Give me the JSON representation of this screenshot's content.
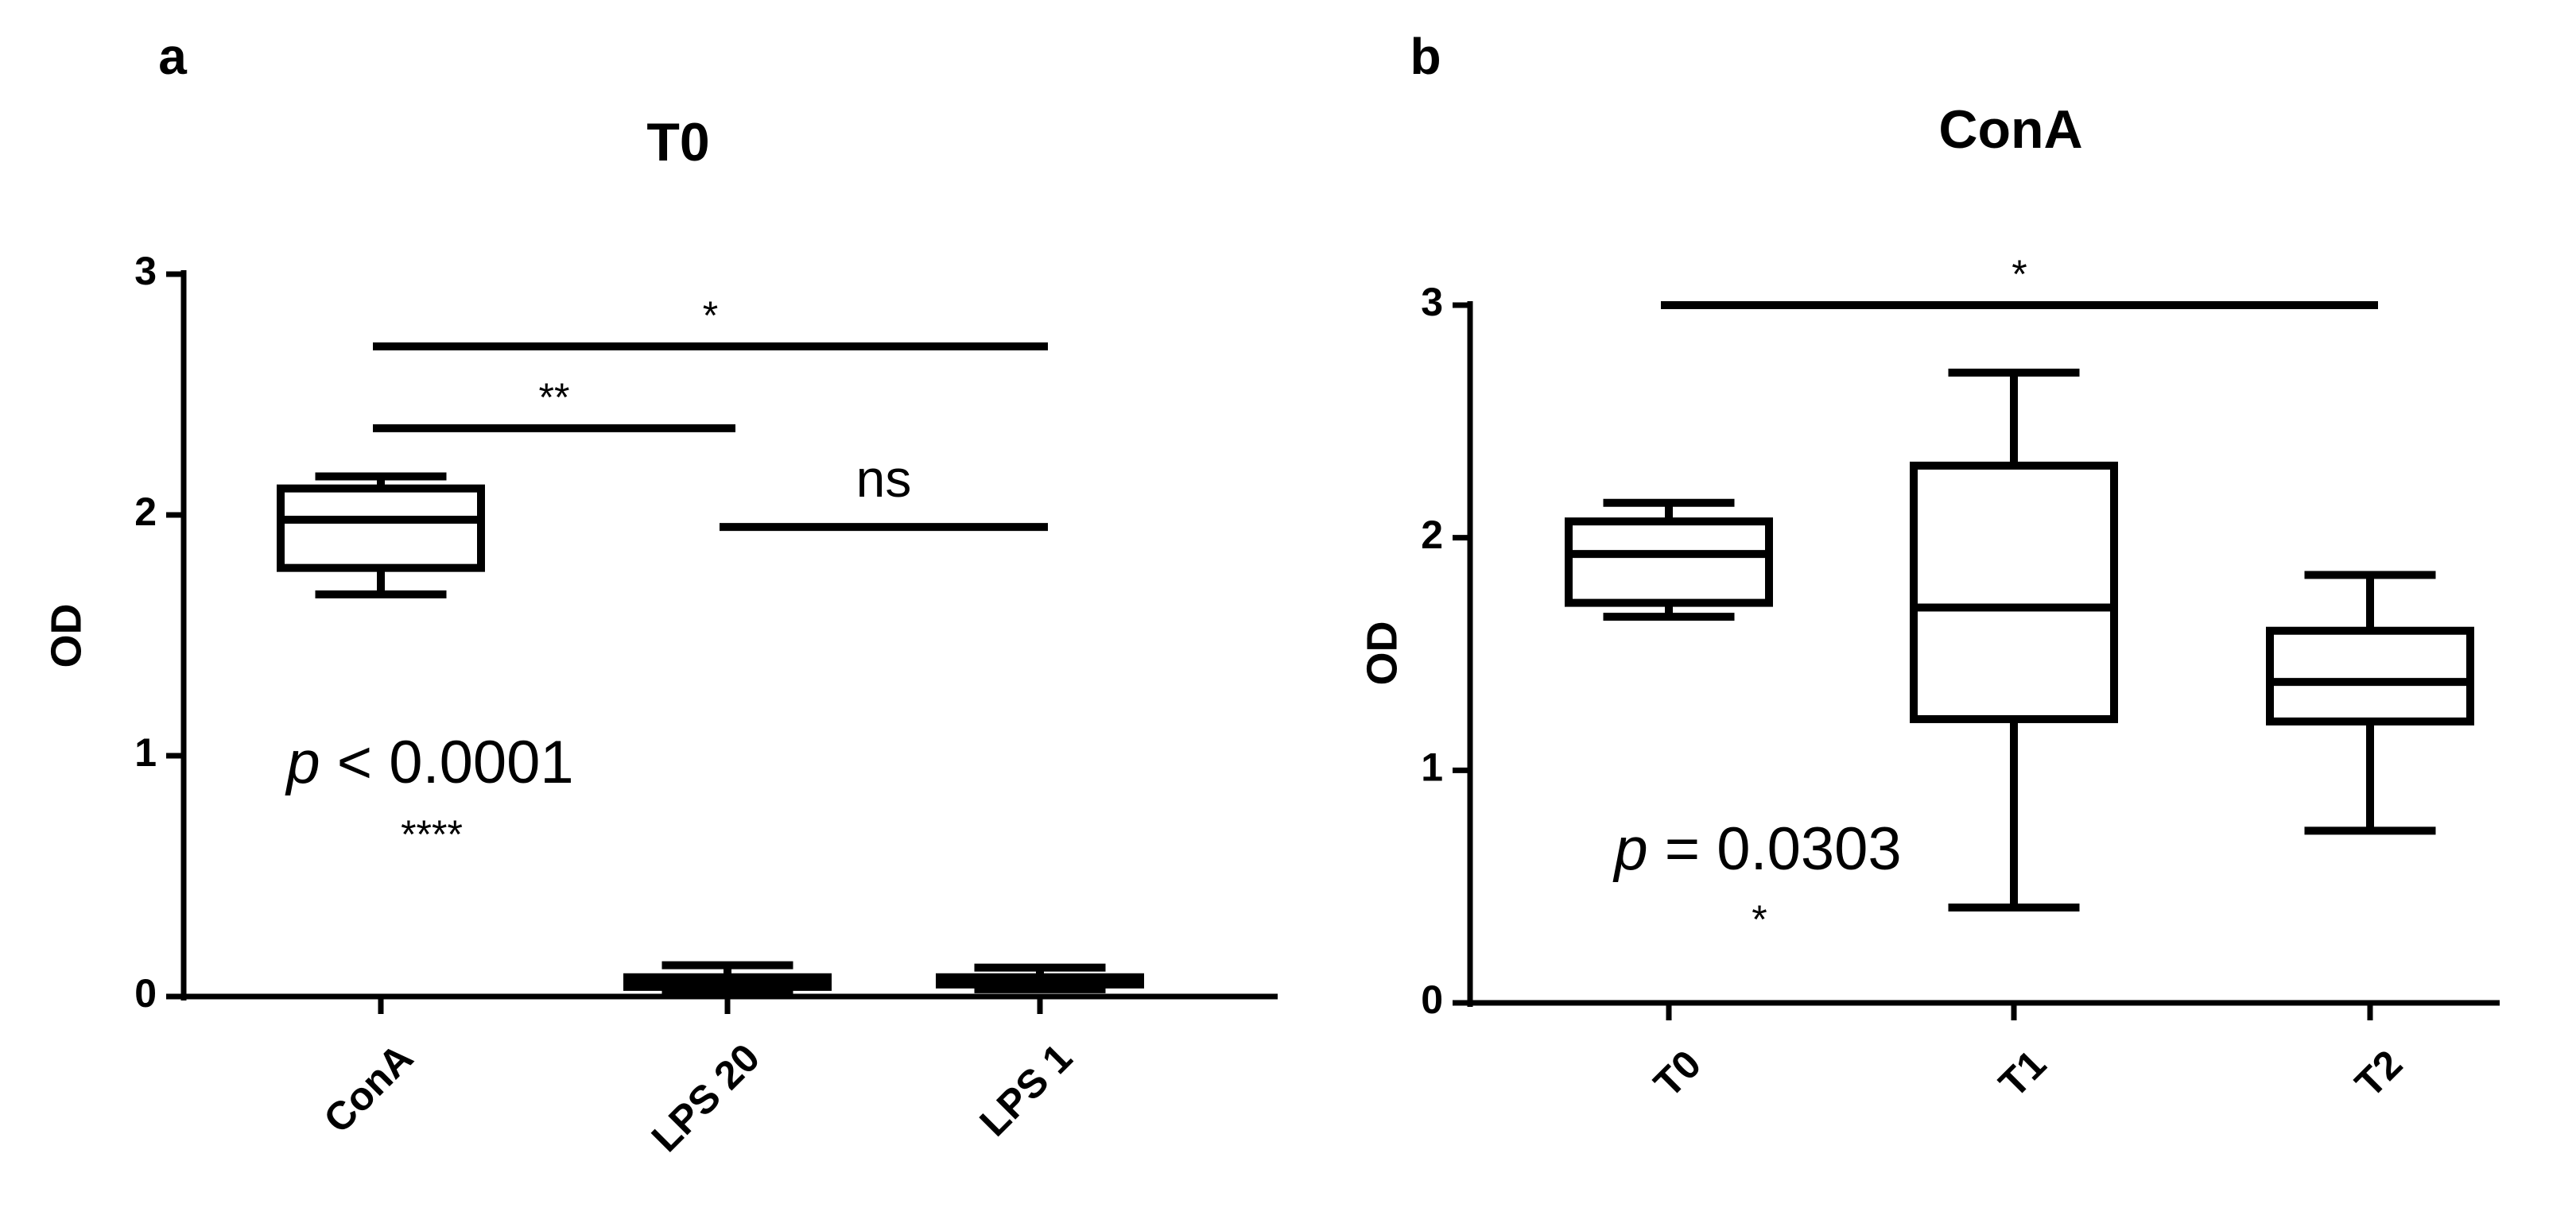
{
  "chart_data": [
    {
      "type": "box",
      "panel": "a",
      "title": "T0",
      "y_label": "OD",
      "categories": [
        "ConA",
        "LPS 20",
        "LPS 1"
      ],
      "boxes": [
        {
          "min": 1.67,
          "q1": 1.78,
          "median": 1.98,
          "q3": 2.11,
          "max": 2.16
        },
        {
          "min": 0.02,
          "q1": 0.04,
          "median": 0.07,
          "q3": 0.08,
          "max": 0.13
        },
        {
          "min": 0.03,
          "q1": 0.05,
          "median": 0.07,
          "q3": 0.08,
          "max": 0.12
        }
      ],
      "ylim": [
        0,
        3
      ],
      "yticks": [
        0,
        1,
        2,
        3
      ],
      "brackets": [
        {
          "label": "*",
          "y": 2.7,
          "from": "ConA",
          "to": "LPS 1"
        },
        {
          "label": "**",
          "y": 2.36,
          "from": "ConA",
          "to": "LPS 20"
        },
        {
          "label": "ns",
          "y": 1.95,
          "from": "LPS 20",
          "to": "LPS 1"
        }
      ],
      "p_value": "p < 0.0001",
      "p_stars": "****"
    },
    {
      "type": "box",
      "panel": "b",
      "title": "ConA",
      "y_label": "OD",
      "categories": [
        "T0",
        "T1",
        "T2"
      ],
      "boxes": [
        {
          "min": 1.66,
          "q1": 1.72,
          "median": 1.93,
          "q3": 2.07,
          "max": 2.15
        },
        {
          "min": 0.41,
          "q1": 1.22,
          "median": 1.7,
          "q3": 2.31,
          "max": 2.71
        },
        {
          "min": 0.74,
          "q1": 1.21,
          "median": 1.38,
          "q3": 1.6,
          "max": 1.84
        }
      ],
      "ylim": [
        0,
        3
      ],
      "yticks": [
        0,
        1,
        2,
        3
      ],
      "brackets": [
        {
          "label": "*",
          "y": 3.0,
          "from": "T0",
          "to": "T2"
        }
      ],
      "p_value": "p = 0.0303",
      "p_stars": "*"
    }
  ]
}
